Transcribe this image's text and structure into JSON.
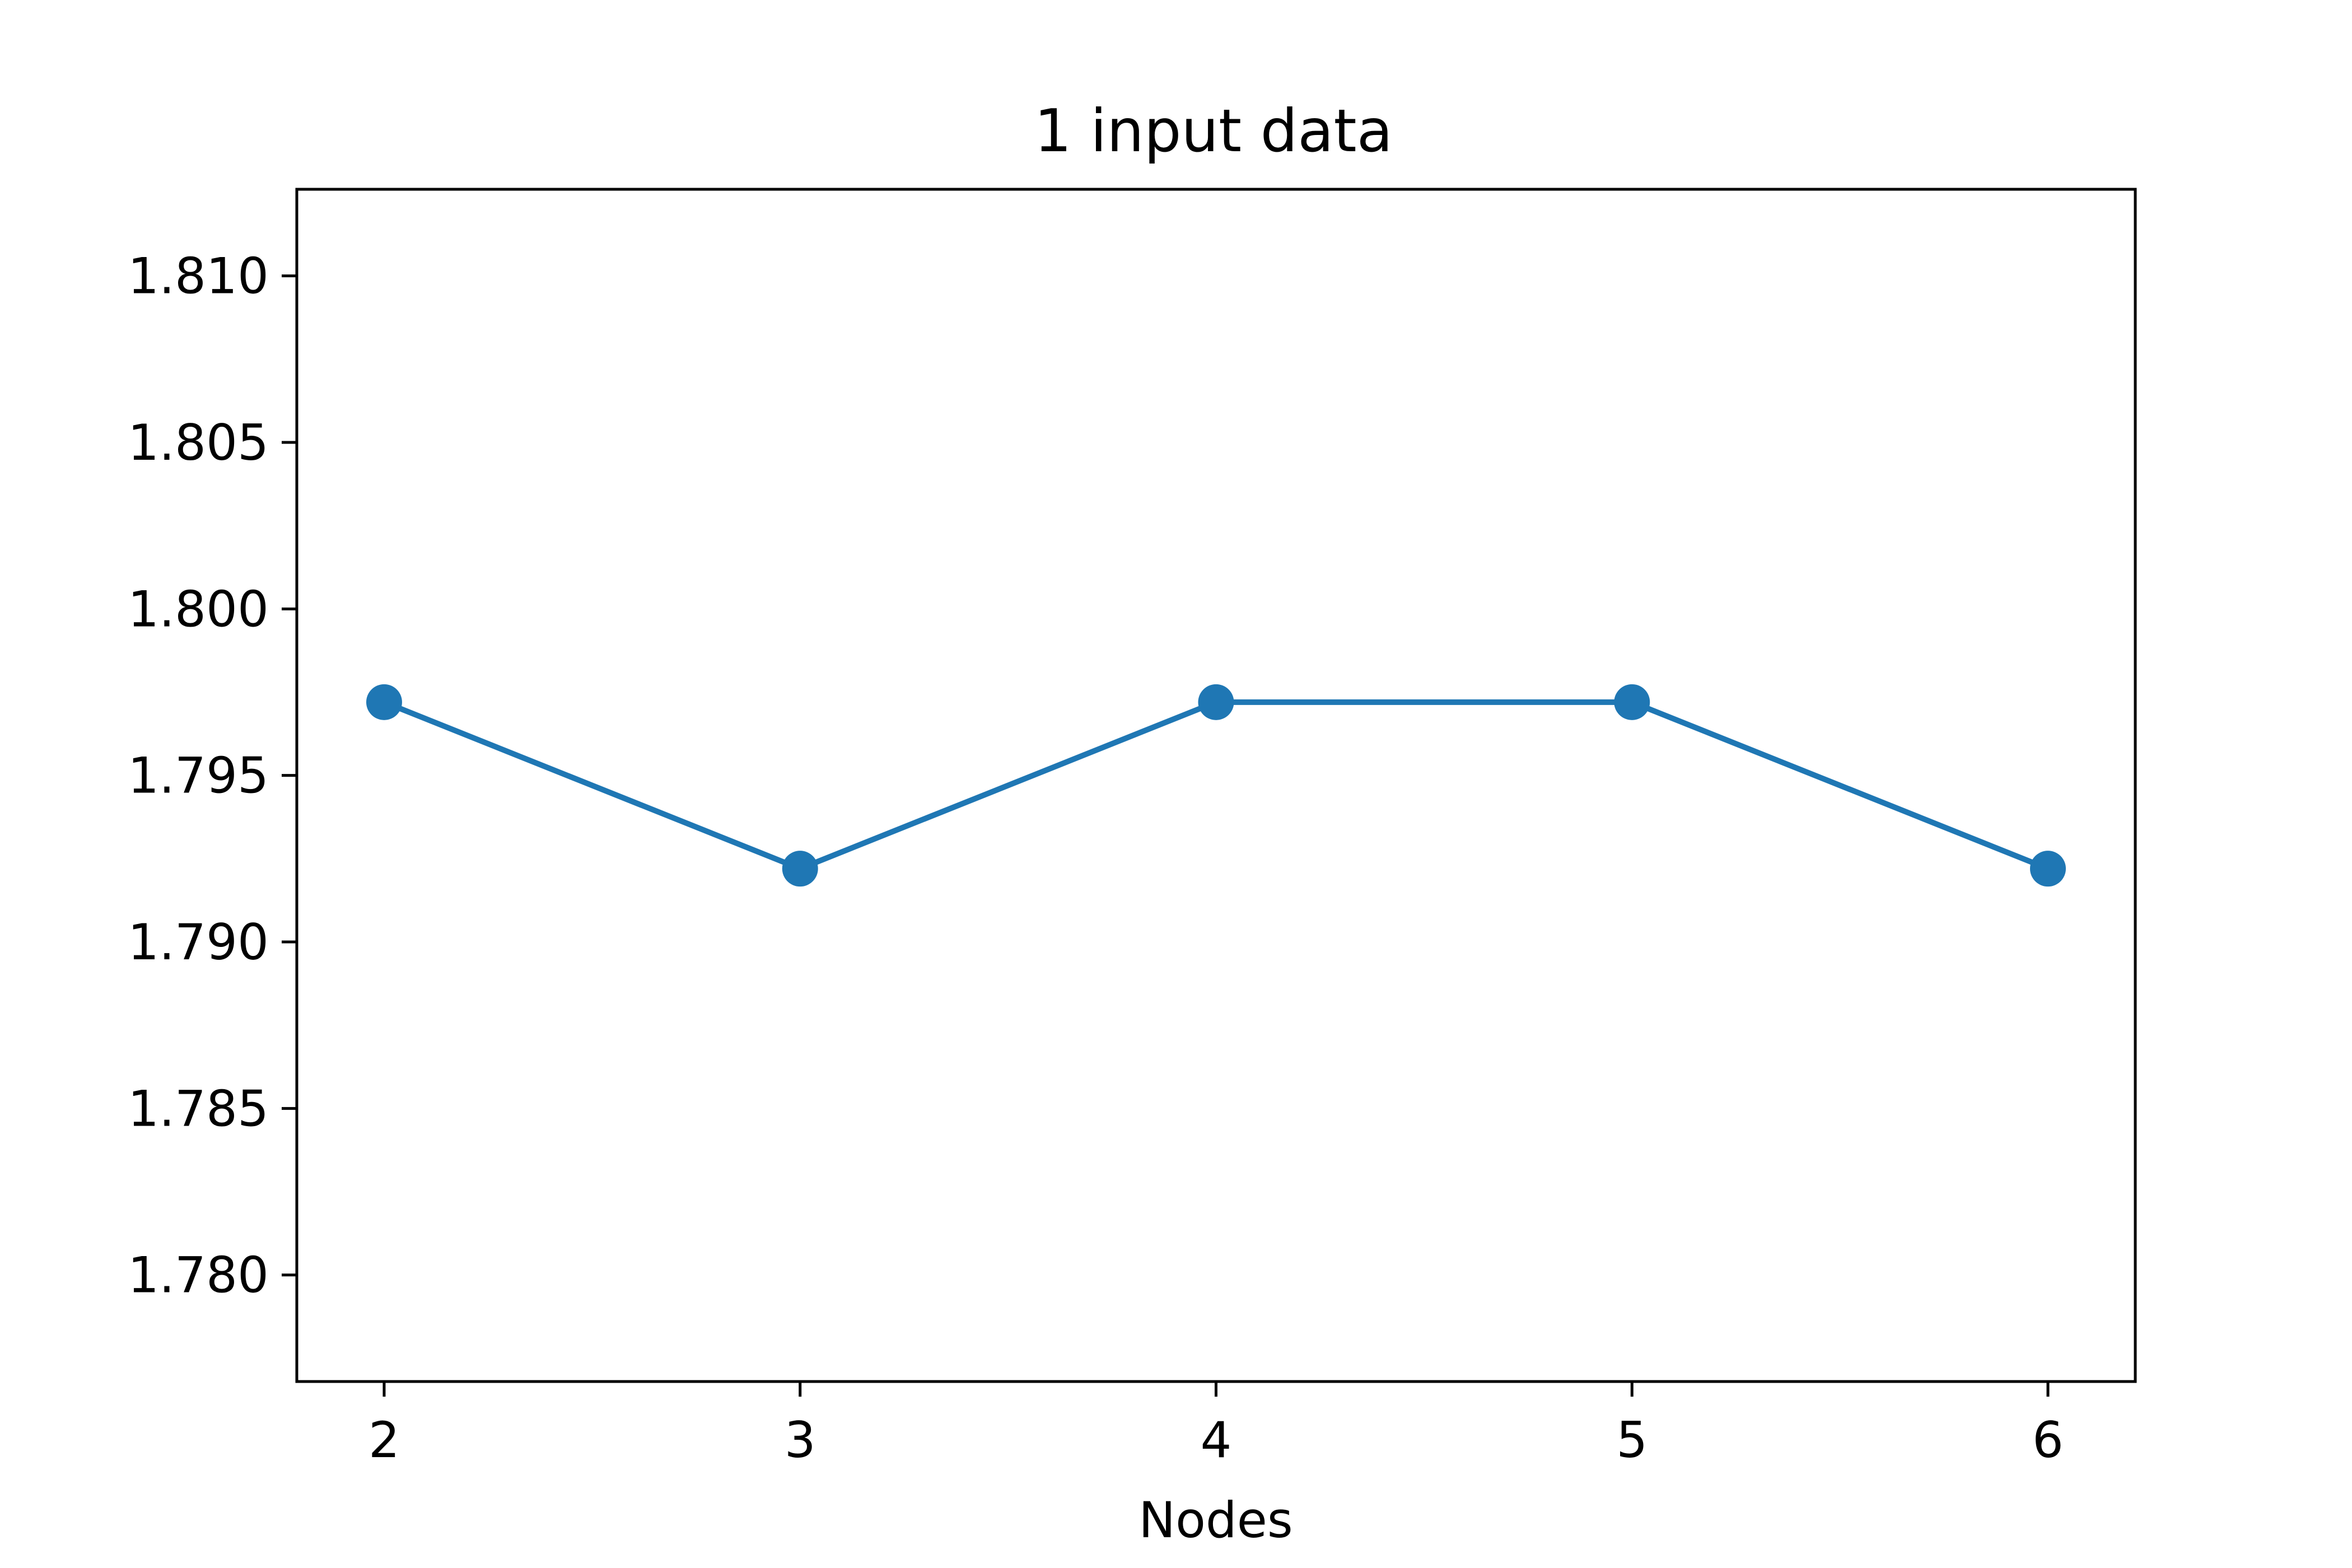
{
  "chart_data": {
    "type": "line",
    "title": "1 input data",
    "xlabel": "Nodes",
    "ylabel": "",
    "x": [
      2,
      3,
      4,
      5,
      6
    ],
    "x_tick_labels": [
      "2",
      "3",
      "4",
      "5",
      "6"
    ],
    "xlim": [
      1.79,
      6.21
    ],
    "ylim": [
      1.7768,
      1.8126
    ],
    "y_ticks": [
      1.78,
      1.785,
      1.79,
      1.795,
      1.8,
      1.805,
      1.81
    ],
    "y_tick_labels": [
      "1.780",
      "1.785",
      "1.790",
      "1.795",
      "1.800",
      "1.805",
      "1.810"
    ],
    "series": [
      {
        "values": [
          1.7972,
          1.7922,
          1.7972,
          1.7972,
          1.7922
        ],
        "color": "#1f77b4",
        "marker": "circle"
      }
    ],
    "grid": false,
    "legend": "none"
  }
}
